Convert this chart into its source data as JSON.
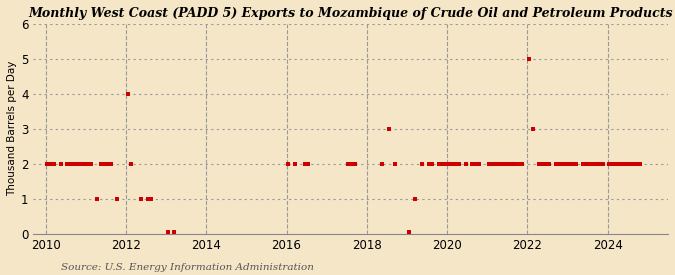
{
  "title": "Monthly West Coast (PADD 5) Exports to Mozambique of Crude Oil and Petroleum Products",
  "ylabel": "Thousand Barrels per Day",
  "source": "Source: U.S. Energy Information Administration",
  "background_color": "#f5e6c8",
  "marker_color": "#cc0000",
  "ylim": [
    0,
    6
  ],
  "yticks": [
    0,
    1,
    2,
    3,
    4,
    5,
    6
  ],
  "xtick_years": [
    2010,
    2012,
    2014,
    2016,
    2018,
    2020,
    2022,
    2024
  ],
  "data_monthly": [
    [
      2010,
      1,
      2
    ],
    [
      2010,
      2,
      2
    ],
    [
      2010,
      3,
      2
    ],
    [
      2010,
      5,
      2
    ],
    [
      2010,
      7,
      2
    ],
    [
      2010,
      8,
      2
    ],
    [
      2010,
      9,
      2
    ],
    [
      2010,
      10,
      2
    ],
    [
      2010,
      11,
      2
    ],
    [
      2010,
      12,
      2
    ],
    [
      2011,
      1,
      2
    ],
    [
      2011,
      2,
      2
    ],
    [
      2011,
      4,
      1
    ],
    [
      2011,
      5,
      2
    ],
    [
      2011,
      6,
      2
    ],
    [
      2011,
      7,
      2
    ],
    [
      2011,
      8,
      2
    ],
    [
      2011,
      10,
      1
    ],
    [
      2012,
      1,
      4
    ],
    [
      2012,
      2,
      2
    ],
    [
      2012,
      5,
      1
    ],
    [
      2012,
      7,
      1
    ],
    [
      2012,
      8,
      1
    ],
    [
      2013,
      1,
      0.05
    ],
    [
      2013,
      3,
      0.05
    ],
    [
      2016,
      1,
      2
    ],
    [
      2016,
      3,
      2
    ],
    [
      2016,
      6,
      2
    ],
    [
      2016,
      7,
      2
    ],
    [
      2017,
      7,
      2
    ],
    [
      2017,
      8,
      2
    ],
    [
      2017,
      9,
      2
    ],
    [
      2018,
      5,
      2
    ],
    [
      2018,
      7,
      3
    ],
    [
      2018,
      9,
      2
    ],
    [
      2019,
      1,
      0.05
    ],
    [
      2019,
      3,
      1
    ],
    [
      2019,
      5,
      2
    ],
    [
      2019,
      7,
      2
    ],
    [
      2019,
      8,
      2
    ],
    [
      2019,
      10,
      2
    ],
    [
      2019,
      11,
      2
    ],
    [
      2019,
      12,
      2
    ],
    [
      2020,
      1,
      2
    ],
    [
      2020,
      2,
      2
    ],
    [
      2020,
      3,
      2
    ],
    [
      2020,
      4,
      2
    ],
    [
      2020,
      6,
      2
    ],
    [
      2020,
      8,
      2
    ],
    [
      2020,
      9,
      2
    ],
    [
      2020,
      10,
      2
    ],
    [
      2021,
      1,
      2
    ],
    [
      2021,
      2,
      2
    ],
    [
      2021,
      3,
      2
    ],
    [
      2021,
      4,
      2
    ],
    [
      2021,
      5,
      2
    ],
    [
      2021,
      6,
      2
    ],
    [
      2021,
      7,
      2
    ],
    [
      2021,
      8,
      2
    ],
    [
      2021,
      9,
      2
    ],
    [
      2021,
      10,
      2
    ],
    [
      2021,
      11,
      2
    ],
    [
      2022,
      1,
      5
    ],
    [
      2022,
      2,
      3
    ],
    [
      2022,
      4,
      2
    ],
    [
      2022,
      5,
      2
    ],
    [
      2022,
      6,
      2
    ],
    [
      2022,
      7,
      2
    ],
    [
      2022,
      9,
      2
    ],
    [
      2022,
      10,
      2
    ],
    [
      2022,
      11,
      2
    ],
    [
      2022,
      12,
      2
    ],
    [
      2023,
      1,
      2
    ],
    [
      2023,
      2,
      2
    ],
    [
      2023,
      3,
      2
    ],
    [
      2023,
      5,
      2
    ],
    [
      2023,
      6,
      2
    ],
    [
      2023,
      7,
      2
    ],
    [
      2023,
      8,
      2
    ],
    [
      2023,
      9,
      2
    ],
    [
      2023,
      10,
      2
    ],
    [
      2023,
      11,
      2
    ],
    [
      2024,
      1,
      2
    ],
    [
      2024,
      2,
      2
    ],
    [
      2024,
      3,
      2
    ],
    [
      2024,
      4,
      2
    ],
    [
      2024,
      5,
      2
    ],
    [
      2024,
      6,
      2
    ],
    [
      2024,
      7,
      2
    ],
    [
      2024,
      8,
      2
    ],
    [
      2024,
      9,
      2
    ],
    [
      2024,
      10,
      2
    ]
  ]
}
